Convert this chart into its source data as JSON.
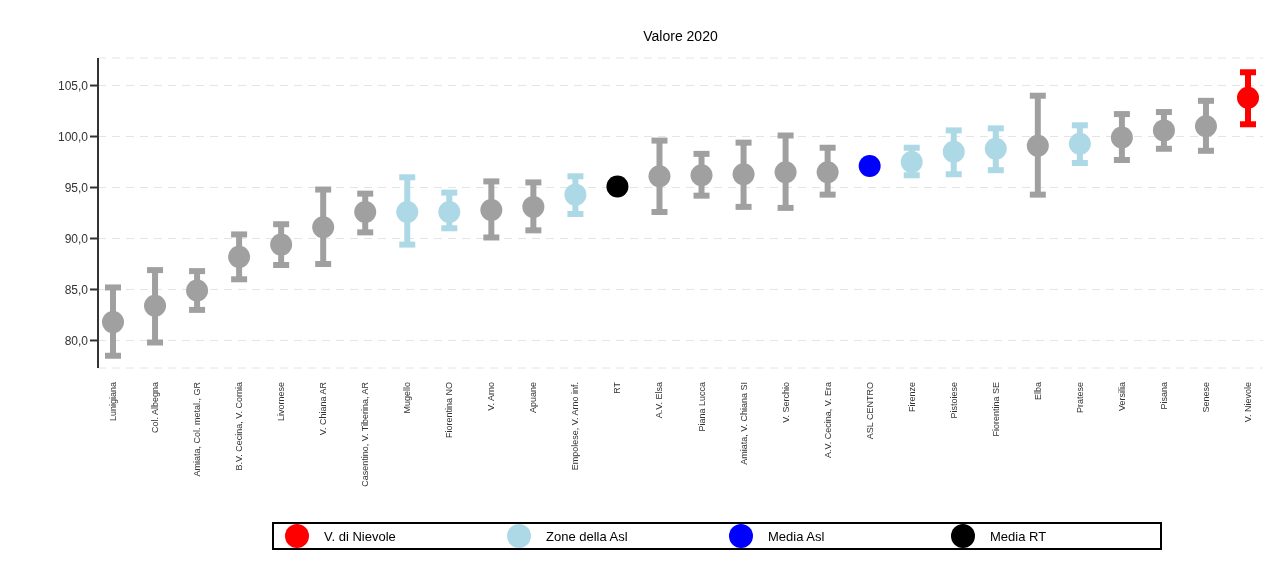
{
  "chart_data": {
    "type": "scatter",
    "title": "Valore 2020",
    "categories": [
      "Lunigiana",
      "Col. Albegna",
      "Amiata, Col. metal., GR",
      "B.V. Cecina, V. Cornia",
      "Livornese",
      "V. Chiana AR",
      "Casentino, V. Tiberina, AR",
      "Mugello",
      "Fiorentina NO",
      "V. Arno",
      "Apuane",
      "Empolese, V. Arno inf.",
      "RT",
      "A.V. Elsa",
      "Piana Lucca",
      "Amiata, V. Chiana SI",
      "V. Serchio",
      "A.V. Cecina, V. Era",
      "ASL CENTRO",
      "Firenze",
      "Pistoiese",
      "Fiorentina SE",
      "Elba",
      "Pratese",
      "Versilia",
      "Pisana",
      "Senese",
      "V. Nievole"
    ],
    "series": [
      {
        "color": "#a0a0a0",
        "values": [
          81.8,
          83.4,
          84.9,
          88.2,
          89.4,
          91.1,
          92.6,
          null,
          null,
          92.8,
          93.1,
          null,
          null,
          96.1,
          96.2,
          96.3,
          96.5,
          96.5,
          null,
          null,
          null,
          null,
          99.1,
          null,
          99.9,
          100.6,
          101.0,
          null
        ],
        "errors": [
          [
            78.5,
            85.2
          ],
          [
            79.8,
            86.9
          ],
          [
            83.0,
            86.8
          ],
          [
            86.0,
            90.4
          ],
          [
            87.4,
            91.4
          ],
          [
            87.5,
            94.8
          ],
          [
            90.6,
            94.4
          ],
          null,
          null,
          [
            90.1,
            95.6
          ],
          [
            90.8,
            95.5
          ],
          null,
          null,
          [
            92.6,
            99.6
          ],
          [
            94.2,
            98.3
          ],
          [
            93.1,
            99.4
          ],
          [
            93.0,
            100.1
          ],
          [
            94.3,
            98.9
          ],
          null,
          null,
          null,
          null,
          [
            94.3,
            104.0
          ],
          null,
          [
            97.7,
            102.2
          ],
          [
            98.8,
            102.4
          ],
          [
            98.6,
            103.5
          ],
          null
        ]
      },
      {
        "name": "V. di Nievole",
        "color": "#ff0000",
        "values": [
          null,
          null,
          null,
          null,
          null,
          null,
          null,
          null,
          null,
          null,
          null,
          null,
          null,
          null,
          null,
          null,
          null,
          null,
          null,
          null,
          null,
          null,
          null,
          null,
          null,
          null,
          null,
          103.8
        ],
        "errors": [
          null,
          null,
          null,
          null,
          null,
          null,
          null,
          null,
          null,
          null,
          null,
          null,
          null,
          null,
          null,
          null,
          null,
          null,
          null,
          null,
          null,
          null,
          null,
          null,
          null,
          null,
          null,
          [
            101.2,
            106.3
          ]
        ]
      },
      {
        "name": "Zone della Asl",
        "color": "#add8e6",
        "values": [
          null,
          null,
          null,
          null,
          null,
          null,
          null,
          92.6,
          92.6,
          null,
          null,
          94.3,
          null,
          null,
          null,
          null,
          null,
          null,
          null,
          97.5,
          98.5,
          98.8,
          null,
          99.3,
          null,
          null,
          null,
          null
        ],
        "errors": [
          null,
          null,
          null,
          null,
          null,
          null,
          null,
          [
            89.4,
            96.0
          ],
          [
            91.0,
            94.5
          ],
          null,
          null,
          [
            92.4,
            96.1
          ],
          null,
          null,
          null,
          null,
          null,
          null,
          null,
          [
            96.2,
            98.9
          ],
          [
            96.3,
            100.6
          ],
          [
            96.7,
            100.8
          ],
          null,
          [
            97.4,
            101.1
          ],
          null,
          null,
          null,
          null
        ]
      },
      {
        "name": "Media Asl",
        "color": "#0000ff",
        "values": [
          null,
          null,
          null,
          null,
          null,
          null,
          null,
          null,
          null,
          null,
          null,
          null,
          null,
          null,
          null,
          null,
          null,
          null,
          97.1,
          null,
          null,
          null,
          null,
          null,
          null,
          null,
          null,
          null
        ]
      },
      {
        "name": "Media RT",
        "color": "#000000",
        "values": [
          null,
          null,
          null,
          null,
          null,
          null,
          null,
          null,
          null,
          null,
          null,
          null,
          95.1,
          null,
          null,
          null,
          null,
          null,
          null,
          null,
          null,
          null,
          null,
          null,
          null,
          null,
          null,
          null
        ]
      }
    ],
    "ylim": [
      77.3,
      107.7
    ],
    "yticks": [
      {
        "value": 80,
        "label": "80,0"
      },
      {
        "value": 85,
        "label": "85,0"
      },
      {
        "value": 90,
        "label": "90,0"
      },
      {
        "value": 95,
        "label": "95,0"
      },
      {
        "value": 100,
        "label": "100,0"
      },
      {
        "value": 105,
        "label": "105,0"
      }
    ],
    "grid": "y",
    "legend": "bottom",
    "marker": "circle"
  }
}
